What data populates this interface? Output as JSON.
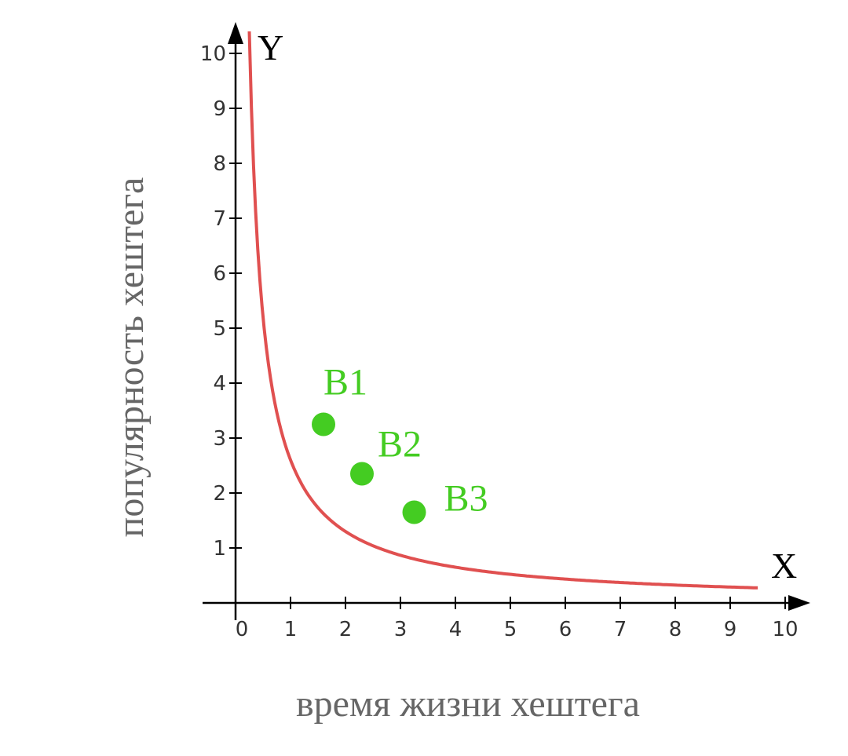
{
  "chart_data": {
    "type": "line",
    "title": "",
    "xlabel": "время жизни хештега",
    "ylabel": "популярность хештега",
    "x_axis_letter": "X",
    "y_axis_letter": "Y",
    "xlim": [
      0,
      10
    ],
    "ylim": [
      0,
      10
    ],
    "x_ticks": [
      "0",
      "1",
      "2",
      "3",
      "4",
      "5",
      "6",
      "7",
      "8",
      "9",
      "10"
    ],
    "y_ticks": [
      "1",
      "2",
      "3",
      "4",
      "5",
      "6",
      "7",
      "8",
      "9",
      "10"
    ],
    "grid": false,
    "series": [
      {
        "function": "y = 2.6 / x",
        "x_range": [
          0.25,
          9.5
        ],
        "color": "#e05050"
      }
    ],
    "points": [
      {
        "label": "B1",
        "x": 1.6,
        "y": 3.25
      },
      {
        "label": "B2",
        "x": 2.3,
        "y": 2.35
      },
      {
        "label": "B3",
        "x": 3.25,
        "y": 1.65
      }
    ],
    "point_color": "#44cc22",
    "axis_color": "#000000"
  }
}
